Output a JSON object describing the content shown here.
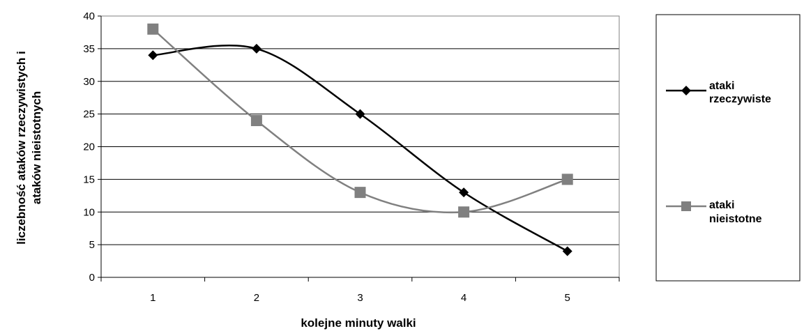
{
  "chart_data": {
    "type": "line",
    "categories": [
      "1",
      "2",
      "3",
      "4",
      "5"
    ],
    "series": [
      {
        "name": "ataki rzeczywiste",
        "values": [
          34,
          35,
          25,
          13,
          4
        ],
        "color": "#000000",
        "marker": "diamond"
      },
      {
        "name": "ataki nieistotne",
        "values": [
          38,
          24,
          13,
          10,
          15
        ],
        "color": "#808080",
        "marker": "square"
      }
    ],
    "title": "",
    "xlabel": "kolejne minuty walki",
    "ylabel": [
      "liczebność ataków rzeczywistych i",
      "ataków nieistotnych"
    ],
    "yticks": [
      "0",
      "5",
      "10",
      "15",
      "20",
      "25",
      "30",
      "35",
      "40"
    ],
    "ylim": [
      0,
      40
    ],
    "grid": "horizontal",
    "legend_position": "right",
    "legend_labels": [
      [
        "ataki",
        "rzeczywiste"
      ],
      [
        "ataki",
        "nieistotne"
      ]
    ]
  }
}
